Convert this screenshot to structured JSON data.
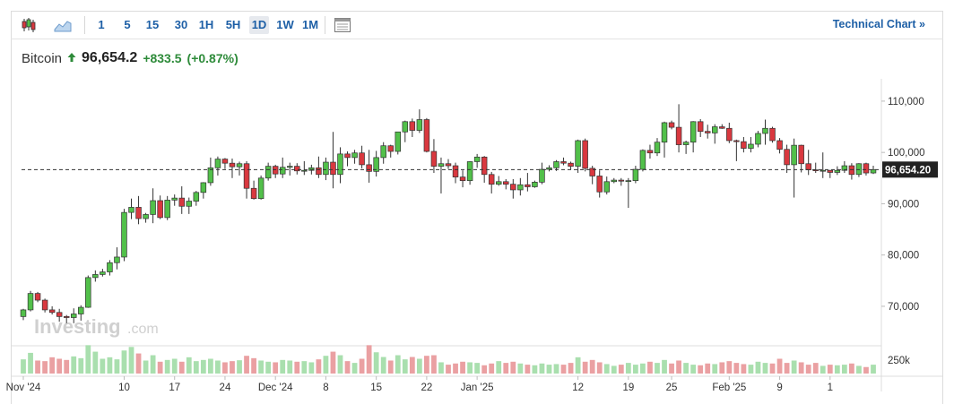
{
  "toolbar": {
    "chart_type_icon": "candlestick-icon",
    "area_icon": "area-chart-icon",
    "timeframes": [
      "1",
      "5",
      "15",
      "30",
      "1H",
      "5H",
      "1D",
      "1W",
      "1M"
    ],
    "active_timeframe": "1D",
    "settings_icon": "table-icon",
    "technical_chart_label": "Technical Chart »"
  },
  "header": {
    "name": "Bitcoin",
    "price": "96,654.2",
    "change": "+833.5",
    "change_pct": "(+0.87%)",
    "direction_icon": "arrow-up-icon"
  },
  "watermark": {
    "text": "Investing",
    "suffix": ".com"
  },
  "colors": {
    "up": "#2ca02c",
    "up_fill": "#52c04a",
    "down": "#c0262d",
    "down_fill": "#d9383f",
    "vol_up": "#a9dfae",
    "vol_down": "#eaa0a2",
    "accent": "#1d5fa6"
  },
  "chart_data": {
    "type": "candlestick",
    "ylim": [
      63000,
      114000
    ],
    "y_ticks": [
      "110,000",
      "100,000",
      "90,000",
      "80,000",
      "70,000"
    ],
    "y_tick_values": [
      110000,
      100000,
      90000,
      80000,
      70000
    ],
    "volume_label": "250k",
    "last_price_label": "96,654.20",
    "last_price": 96654.2,
    "x_tick_labels": [
      "Nov '24",
      "10",
      "17",
      "24",
      "Dec '24",
      "8",
      "15",
      "22",
      "Jan '25",
      "12",
      "19",
      "25",
      "Feb '25",
      "9",
      "1"
    ],
    "x_tick_index": [
      0,
      14,
      21,
      28,
      35,
      42,
      49,
      56,
      63,
      77,
      84,
      90,
      98,
      105,
      112
    ],
    "candles": [
      [
        68000,
        69500,
        67300,
        69300
      ],
      [
        69300,
        73000,
        69000,
        72500
      ],
      [
        72500,
        72800,
        70800,
        71200
      ],
      [
        71200,
        71500,
        68800,
        69300
      ],
      [
        69300,
        70000,
        68400,
        68800
      ],
      [
        68800,
        69500,
        67000,
        68000
      ],
      [
        68000,
        68300,
        66700,
        67800
      ],
      [
        67800,
        69600,
        66700,
        68500
      ],
      [
        68500,
        70200,
        67200,
        69800
      ],
      [
        69800,
        76000,
        69700,
        75600
      ],
      [
        75600,
        77000,
        74800,
        76200
      ],
      [
        76200,
        77300,
        75800,
        76700
      ],
      [
        76700,
        79000,
        76000,
        78500
      ],
      [
        78500,
        81500,
        77200,
        79600
      ],
      [
        79600,
        89000,
        78800,
        88300
      ],
      [
        88300,
        91000,
        87000,
        89300
      ],
      [
        89300,
        91500,
        86000,
        87100
      ],
      [
        87100,
        88200,
        86300,
        87900
      ],
      [
        87900,
        93000,
        86200,
        90600
      ],
      [
        90600,
        91600,
        87000,
        87300
      ],
      [
        87300,
        91500,
        86800,
        90700
      ],
      [
        90700,
        91800,
        89600,
        91100
      ],
      [
        91100,
        93400,
        88000,
        89500
      ],
      [
        89500,
        91200,
        88000,
        90500
      ],
      [
        90500,
        92500,
        89600,
        92200
      ],
      [
        92200,
        94200,
        91000,
        94100
      ],
      [
        94100,
        99000,
        93500,
        97000
      ],
      [
        97000,
        99200,
        95500,
        98700
      ],
      [
        98700,
        98900,
        96800,
        97900
      ],
      [
        97900,
        98800,
        95000,
        97200
      ],
      [
        97200,
        98200,
        95500,
        97800
      ],
      [
        97800,
        98300,
        91000,
        93000
      ],
      [
        93000,
        94500,
        90800,
        91000
      ],
      [
        91000,
        95500,
        90800,
        95000
      ],
      [
        95000,
        98000,
        94500,
        97300
      ],
      [
        97300,
        97600,
        95000,
        95800
      ],
      [
        95800,
        99000,
        95000,
        97100
      ],
      [
        97100,
        98000,
        95500,
        97300
      ],
      [
        97300,
        97900,
        95700,
        96400
      ],
      [
        96400,
        98300,
        95600,
        96500
      ],
      [
        96500,
        97600,
        95700,
        97000
      ],
      [
        97000,
        99200,
        95000,
        95700
      ],
      [
        95700,
        99000,
        94600,
        98100
      ],
      [
        98100,
        104000,
        93000,
        95700
      ],
      [
        95700,
        101000,
        94000,
        99700
      ],
      [
        99700,
        100200,
        97300,
        99000
      ],
      [
        99000,
        100500,
        97800,
        99900
      ],
      [
        99900,
        101300,
        96900,
        97600
      ],
      [
        97600,
        100500,
        94100,
        96300
      ],
      [
        96300,
        100300,
        95300,
        99000
      ],
      [
        99000,
        102000,
        97800,
        101300
      ],
      [
        101300,
        101500,
        99000,
        100200
      ],
      [
        100200,
        104000,
        99600,
        104000
      ],
      [
        104000,
        106200,
        102000,
        106000
      ],
      [
        106000,
        106600,
        103000,
        104300
      ],
      [
        104300,
        108400,
        103800,
        106400
      ],
      [
        106400,
        106700,
        100000,
        100200
      ],
      [
        100200,
        102600,
        96000,
        97300
      ],
      [
        97300,
        99000,
        92000,
        97800
      ],
      [
        97800,
        98700,
        96800,
        97400
      ],
      [
        97400,
        98000,
        94000,
        95200
      ],
      [
        95200,
        96500,
        93200,
        94500
      ],
      [
        94500,
        98300,
        93700,
        98200
      ],
      [
        98200,
        99700,
        97000,
        99100
      ],
      [
        99100,
        99300,
        94100,
        95700
      ],
      [
        95700,
        96200,
        92000,
        93800
      ],
      [
        93800,
        95400,
        93500,
        94300
      ],
      [
        94300,
        94800,
        92800,
        93800
      ],
      [
        93800,
        94800,
        91000,
        92700
      ],
      [
        92700,
        95000,
        91600,
        93700
      ],
      [
        93700,
        96000,
        92400,
        93300
      ],
      [
        93300,
        94500,
        93100,
        94200
      ],
      [
        94200,
        98000,
        93800,
        96700
      ],
      [
        96700,
        97500,
        96300,
        97000
      ],
      [
        97000,
        98500,
        96400,
        98200
      ],
      [
        98200,
        99000,
        97500,
        97900
      ],
      [
        97900,
        98200,
        96700,
        97300
      ],
      [
        97300,
        102500,
        96000,
        102300
      ],
      [
        102300,
        102700,
        96300,
        96900
      ],
      [
        96900,
        97400,
        93800,
        95400
      ],
      [
        95400,
        96500,
        91200,
        92300
      ],
      [
        92300,
        95300,
        91800,
        94300
      ],
      [
        94300,
        95000,
        94000,
        94600
      ],
      [
        94600,
        95000,
        93500,
        94400
      ],
      [
        94400,
        95000,
        89200,
        94500
      ],
      [
        94500,
        97400,
        94000,
        96700
      ],
      [
        96700,
        100600,
        96300,
        100400
      ],
      [
        100400,
        101500,
        98800,
        99900
      ],
      [
        99900,
        102800,
        99300,
        102000
      ],
      [
        102000,
        106000,
        99000,
        105800
      ],
      [
        105800,
        106200,
        104500,
        104900
      ],
      [
        104900,
        109400,
        100000,
        101500
      ],
      [
        101500,
        102300,
        99700,
        102000
      ],
      [
        102000,
        106100,
        100000,
        106000
      ],
      [
        106000,
        106500,
        103000,
        104100
      ],
      [
        104100,
        105400,
        102700,
        103800
      ],
      [
        103800,
        105500,
        101700,
        105000
      ],
      [
        105000,
        105500,
        104600,
        104700
      ],
      [
        104700,
        105800,
        101800,
        102300
      ],
      [
        102300,
        102500,
        98300,
        102100
      ],
      [
        102100,
        103000,
        100000,
        100800
      ],
      [
        100800,
        103000,
        100000,
        101600
      ],
      [
        101600,
        104200,
        101000,
        103700
      ],
      [
        103700,
        106400,
        101500,
        104700
      ],
      [
        104700,
        105000,
        101900,
        102300
      ],
      [
        102300,
        102800,
        99800,
        100600
      ],
      [
        100600,
        101500,
        96000,
        97600
      ],
      [
        97600,
        102700,
        91200,
        101400
      ],
      [
        101400,
        101500,
        96100,
        97800
      ],
      [
        97800,
        100500,
        95600,
        96600
      ],
      [
        96600,
        98000,
        96000,
        96500
      ],
      [
        96500,
        100000,
        95000,
        96500
      ],
      [
        96500,
        96600,
        95000,
        96100
      ],
      [
        96100,
        97300,
        95600,
        96500
      ],
      [
        96500,
        98300,
        96000,
        97400
      ],
      [
        97400,
        97900,
        94700,
        95700
      ],
      [
        95700,
        97900,
        95200,
        97800
      ],
      [
        97800,
        98000,
        95500,
        96000
      ],
      [
        96000,
        97400,
        95800,
        96654
      ]
    ],
    "volume_fraction": [
      0.48,
      0.7,
      0.44,
      0.42,
      0.55,
      0.5,
      0.46,
      0.58,
      0.52,
      0.96,
      0.74,
      0.5,
      0.55,
      0.48,
      0.78,
      0.9,
      0.68,
      0.44,
      0.62,
      0.4,
      0.46,
      0.5,
      0.4,
      0.55,
      0.42,
      0.46,
      0.5,
      0.44,
      0.38,
      0.42,
      0.45,
      0.6,
      0.52,
      0.44,
      0.4,
      0.38,
      0.46,
      0.44,
      0.4,
      0.42,
      0.38,
      0.48,
      0.6,
      0.74,
      0.62,
      0.42,
      0.36,
      0.5,
      0.96,
      0.72,
      0.56,
      0.44,
      0.62,
      0.48,
      0.56,
      0.5,
      0.6,
      0.62,
      0.38,
      0.3,
      0.34,
      0.4,
      0.38,
      0.36,
      0.28,
      0.34,
      0.42,
      0.36,
      0.4,
      0.34,
      0.3,
      0.28,
      0.34,
      0.3,
      0.32,
      0.3,
      0.36,
      0.55,
      0.4,
      0.46,
      0.38,
      0.32,
      0.26,
      0.3,
      0.36,
      0.3,
      0.34,
      0.4,
      0.36,
      0.46,
      0.34,
      0.44,
      0.36,
      0.3,
      0.28,
      0.34,
      0.32,
      0.38,
      0.42,
      0.36,
      0.32,
      0.3,
      0.4,
      0.36,
      0.34,
      0.5,
      0.36,
      0.44,
      0.38,
      0.3,
      0.36,
      0.26,
      0.3,
      0.28,
      0.3,
      0.34,
      0.26,
      0.22
    ]
  }
}
